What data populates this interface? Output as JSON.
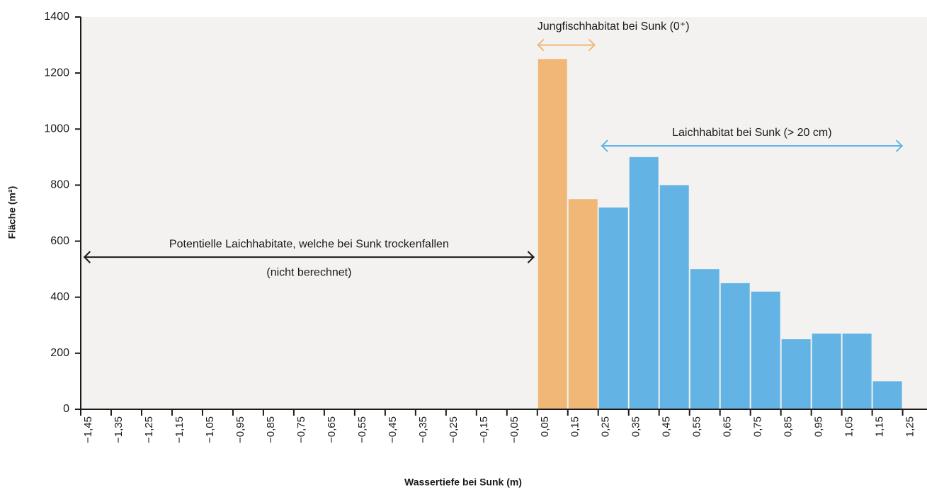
{
  "chart_data": {
    "type": "histogram",
    "x_label": "Wassertiefe bei Sunk (m)",
    "y_label": "Fläche (m²)",
    "bins": [
      0.05,
      0.15,
      0.25,
      0.35,
      0.45,
      0.55,
      0.65,
      0.75,
      0.85,
      0.95,
      1.05,
      1.15,
      1.25
    ],
    "values": [
      1250,
      750,
      720,
      900,
      800,
      500,
      450,
      420,
      250,
      270,
      270,
      100
    ],
    "colors": [
      "#f0b777",
      "#f0b777",
      "#63b4e4",
      "#63b4e4",
      "#63b4e4",
      "#63b4e4",
      "#63b4e4",
      "#63b4e4",
      "#63b4e4",
      "#63b4e4",
      "#63b4e4",
      "#63b4e4"
    ],
    "xlim": [
      -1.45,
      1.33
    ],
    "ylim": [
      0,
      1400
    ],
    "yticks": [
      0,
      200,
      400,
      600,
      800,
      1000,
      1200,
      1400
    ],
    "xticks": [
      {
        "value": -1.45,
        "label": "−1,45"
      },
      {
        "value": -1.35,
        "label": "−1,35"
      },
      {
        "value": -1.25,
        "label": "−1,25"
      },
      {
        "value": -1.15,
        "label": "−1,15"
      },
      {
        "value": -1.05,
        "label": "−1,05"
      },
      {
        "value": -0.95,
        "label": "−0,95"
      },
      {
        "value": -0.85,
        "label": "−0,85"
      },
      {
        "value": -0.75,
        "label": "−0,75"
      },
      {
        "value": -0.65,
        "label": "−0,65"
      },
      {
        "value": -0.55,
        "label": "−0,55"
      },
      {
        "value": -0.45,
        "label": "−0,45"
      },
      {
        "value": -0.35,
        "label": "−0,35"
      },
      {
        "value": -0.25,
        "label": "−0,25"
      },
      {
        "value": -0.15,
        "label": "−0,15"
      },
      {
        "value": -0.05,
        "label": "−0,05"
      },
      {
        "value": 0.05,
        "label": "0,05"
      },
      {
        "value": 0.15,
        "label": "0,15"
      },
      {
        "value": 0.25,
        "label": "0,25"
      },
      {
        "value": 0.35,
        "label": "0,35"
      },
      {
        "value": 0.45,
        "label": "0,45"
      },
      {
        "value": 0.55,
        "label": "0,55"
      },
      {
        "value": 0.65,
        "label": "0,65"
      },
      {
        "value": 0.75,
        "label": "0,75"
      },
      {
        "value": 0.85,
        "label": "0,85"
      },
      {
        "value": 0.95,
        "label": "0,95"
      },
      {
        "value": 1.05,
        "label": "1,05"
      },
      {
        "value": 1.15,
        "label": "1,15"
      },
      {
        "value": 1.25,
        "label": "1,25"
      }
    ],
    "annotations": [
      {
        "text": "Jungfischhabitat bei Sunk (0⁺)",
        "x": [
          0.05,
          0.24
        ],
        "y": 1300,
        "color": "#f0b777"
      },
      {
        "text": "Laichhabitat bei Sunk (> 20 cm)",
        "x": [
          0.26,
          1.25
        ],
        "y": 940,
        "color": "#63b4e4"
      },
      {
        "text": "Potentielle Laichhabitate, welche bei Sunk trockenfallen",
        "subtext": "(nicht berechnet)",
        "x": [
          -1.44,
          0.04
        ],
        "y": 543,
        "color": "#1a1a1a"
      }
    ]
  }
}
